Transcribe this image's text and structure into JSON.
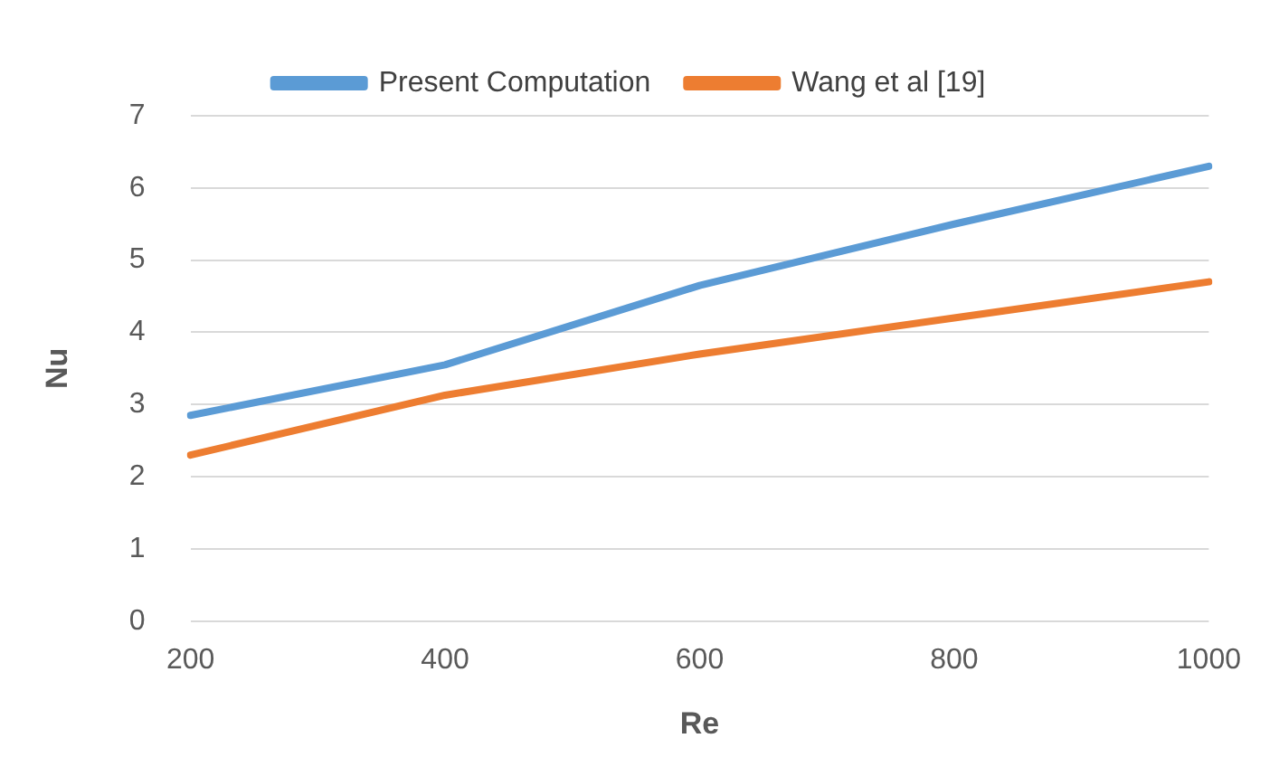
{
  "chart_data": {
    "type": "line",
    "xlabel": "Re",
    "ylabel": "Nu",
    "categories": [
      "200",
      "400",
      "600",
      "800",
      "1000"
    ],
    "series": [
      {
        "name": "Present Computation",
        "color": "#5b9bd5",
        "values": [
          2.85,
          3.55,
          4.65,
          5.5,
          6.3
        ]
      },
      {
        "name": "Wang et al [19]",
        "color": "#ed7d31",
        "values": [
          2.3,
          3.13,
          3.7,
          4.2,
          4.7
        ]
      }
    ],
    "ylim": [
      0,
      7
    ],
    "yticks": [
      0,
      1,
      2,
      3,
      4,
      5,
      6,
      7
    ],
    "grid": "y",
    "legend": "top",
    "marker": "none",
    "line_style": "solid"
  }
}
